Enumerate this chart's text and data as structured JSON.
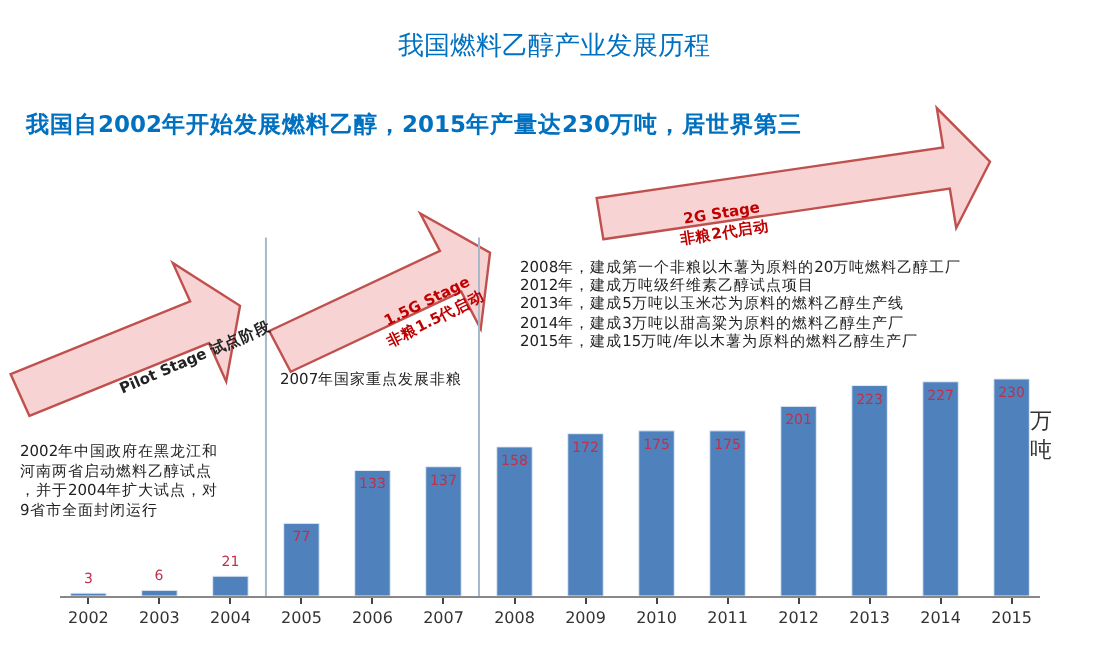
{
  "chart_data": {
    "type": "bar",
    "title": "我国燃料乙醇产业发展历程",
    "subtitle": "我国自2002年开始发展燃料乙醇，2015年产量达230万吨，居世界第三",
    "ylabel": "万吨",
    "x": [
      2002,
      2003,
      2004,
      2005,
      2006,
      2007,
      2008,
      2009,
      2010,
      2011,
      2012,
      2013,
      2014,
      2015
    ],
    "values": [
      3,
      6,
      21,
      77,
      133,
      137,
      158,
      172,
      175,
      175,
      201,
      223,
      227,
      230
    ],
    "color": "#4f81bd",
    "data_labels": true,
    "xlim": [
      2001.6,
      2015.4
    ],
    "xticks": [
      2002,
      2003,
      2004,
      2005,
      2006,
      2007,
      2008,
      2009,
      2010,
      2011,
      2012,
      2013,
      2014,
      2015
    ],
    "tick_labels": "x",
    "grid": false,
    "legend": false,
    "ref_lines": [
      {
        "axis": "x",
        "value": 2004.5,
        "color": "#a6b8cc"
      },
      {
        "axis": "x",
        "value": 2007.5,
        "color": "#a6b8cc"
      }
    ],
    "annotations": [
      "Pilot Stage 试点阶段",
      "1.5G Stage\n非粮1.5代启动",
      "2G Stage\n非粮2代启动",
      "2002年中国政府在黑龙江和河南两省启动燃料乙醇试点，并于2004年扩大试点，对9省市全面封闭运行",
      "2007年国家重点发展非粮",
      "2008年，建成第一个非粮以木薯为原料的20万吨燃料乙醇工厂",
      "2012年，建成万吨级纤维素乙醇试点项目",
      "2013年，建成5万吨以玉米芯为原料的燃料乙醇生产线",
      "2014年，建成3万吨以甜高粱为原料的燃料乙醇生产厂",
      "2015年，建成15万吨/年以木薯为原料的燃料乙醇生产厂"
    ]
  }
}
